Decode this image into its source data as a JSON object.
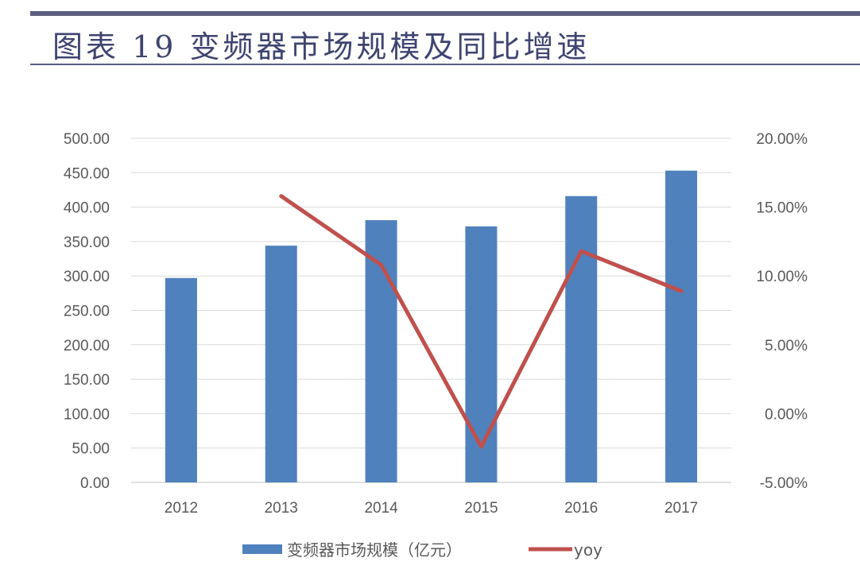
{
  "header": {
    "title": "图表 19 变频器市场规模及同比增速"
  },
  "chart_data": {
    "type": "bar+line",
    "categories": [
      "2012",
      "2013",
      "2014",
      "2015",
      "2016",
      "2017"
    ],
    "series": [
      {
        "name": "变频器市场规模（亿元）",
        "type": "bar",
        "axis": "left",
        "color": "#4f81bd",
        "values": [
          297,
          344,
          381,
          372,
          416,
          453
        ]
      },
      {
        "name": "yoy",
        "type": "line",
        "axis": "right",
        "color": "#c0504d",
        "values": [
          null,
          15.8,
          10.8,
          -2.4,
          11.8,
          8.9
        ]
      }
    ],
    "left_axis": {
      "ylim": [
        0,
        500
      ],
      "ticks": [
        "0.00",
        "50.00",
        "100.00",
        "150.00",
        "200.00",
        "250.00",
        "300.00",
        "350.00",
        "400.00",
        "450.00",
        "500.00"
      ]
    },
    "right_axis": {
      "ylim": [
        -5,
        20
      ],
      "unit": "%",
      "ticks": [
        "-5.00%",
        "0.00%",
        "5.00%",
        "10.00%",
        "15.00%",
        "20.00%"
      ]
    },
    "grid": true,
    "legend": "bottom"
  }
}
